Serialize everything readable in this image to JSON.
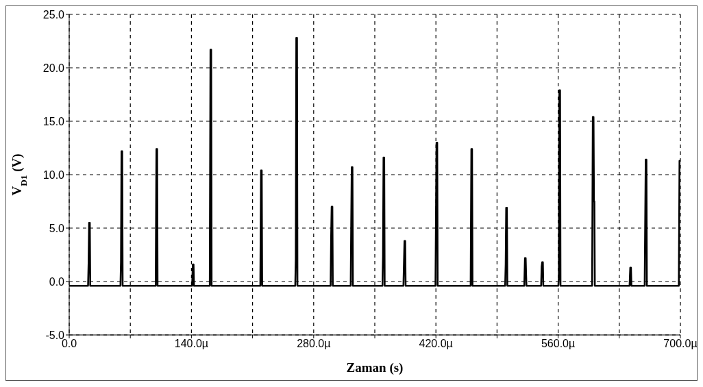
{
  "chart_data": {
    "type": "line",
    "xlabel": "Zaman (s)",
    "ylabel": "V$_{D1}$ (V)",
    "xlim": [
      0,
      700
    ],
    "ylim": [
      -5,
      25
    ],
    "xticks": [
      {
        "value": 0,
        "label": "0.0"
      },
      {
        "value": 70,
        "label": null
      },
      {
        "value": 140,
        "label": "140.0µ"
      },
      {
        "value": 210,
        "label": null
      },
      {
        "value": 280,
        "label": "280.0µ"
      },
      {
        "value": 350,
        "label": null
      },
      {
        "value": 420,
        "label": "420.0µ"
      },
      {
        "value": 490,
        "label": null
      },
      {
        "value": 560,
        "label": "560.0µ"
      },
      {
        "value": 630,
        "label": null
      },
      {
        "value": 700,
        "label": "700.0µ"
      }
    ],
    "yticks": [
      {
        "value": -5,
        "label": "-5.0"
      },
      {
        "value": 0,
        "label": "0.0"
      },
      {
        "value": 5,
        "label": "5.0"
      },
      {
        "value": 10,
        "label": "10.0"
      },
      {
        "value": 15,
        "label": "15.0"
      },
      {
        "value": 20,
        "label": "20.0"
      },
      {
        "value": 25,
        "label": "25.0"
      }
    ],
    "grid": true,
    "line_style": "solid",
    "series": [
      {
        "color": "#000000",
        "x": [
          0,
          21.6,
          22.2,
          22.8,
          23.6,
          24.1,
          58.7,
          59.3,
          59.9,
          60.7,
          61.2,
          99.1,
          99.9,
          100.7,
          101.2,
          140.8,
          141.6,
          142.4,
          142.9,
          161.0,
          161.8,
          162.6,
          163.1,
          218.9,
          219.7,
          220.5,
          221.0,
          258.9,
          259.5,
          260.1,
          260.9,
          261.4,
          299.4,
          300.0,
          300.6,
          301.4,
          301.9,
          322.4,
          323.0,
          323.6,
          324.4,
          324.9,
          358.8,
          359.4,
          360.0,
          360.8,
          361.3,
          382.8,
          383.4,
          384.0,
          384.8,
          385.3,
          419.5,
          420.1,
          420.7,
          421.5,
          422.0,
          459.8,
          460.6,
          461.4,
          461.9,
          499.3,
          499.9,
          500.5,
          501.3,
          501.8,
          521.2,
          522.0,
          522.8,
          523.2,
          523.7,
          540.5,
          541.1,
          541.7,
          542.5,
          543.0,
          560.2,
          560.8,
          561.4,
          562.2,
          562.7,
          598.9,
          599.7,
          600.5,
          601.0,
          601.5,
          602.0,
          641.8,
          642.6,
          643.4,
          643.9,
          659.1,
          659.7,
          660.3,
          661.1,
          661.6,
          698.2,
          699.0,
          700
        ],
        "values": [
          -0.4,
          -0.4,
          1.7,
          5.5,
          5.5,
          -0.4,
          -0.4,
          1.8,
          12.2,
          12.2,
          -0.4,
          -0.4,
          12.4,
          12.4,
          -0.4,
          -0.4,
          1.6,
          1.6,
          -0.4,
          -0.4,
          21.7,
          21.7,
          -0.4,
          -0.4,
          10.4,
          10.4,
          -0.4,
          -0.4,
          2.1,
          22.8,
          22.8,
          -0.4,
          -0.4,
          4.2,
          7.0,
          7.0,
          -0.4,
          -0.4,
          5.3,
          10.7,
          10.7,
          -0.4,
          -0.4,
          2.3,
          11.6,
          11.6,
          -0.4,
          -0.4,
          1.7,
          3.8,
          3.8,
          -0.4,
          -0.4,
          6.3,
          13.0,
          13.0,
          -0.4,
          -0.4,
          12.4,
          12.4,
          -0.4,
          -0.4,
          1.6,
          6.9,
          6.9,
          -0.4,
          -0.4,
          2.2,
          2.2,
          0.9,
          -0.4,
          -0.4,
          1.4,
          1.8,
          1.8,
          -0.4,
          -0.4,
          0.4,
          17.9,
          17.9,
          -0.4,
          -0.4,
          15.4,
          15.4,
          7.5,
          7.5,
          -0.4,
          -0.4,
          1.3,
          1.3,
          -0.4,
          -0.4,
          5.5,
          11.4,
          11.4,
          -0.4,
          -0.4,
          11.3,
          11.3
        ]
      }
    ]
  }
}
